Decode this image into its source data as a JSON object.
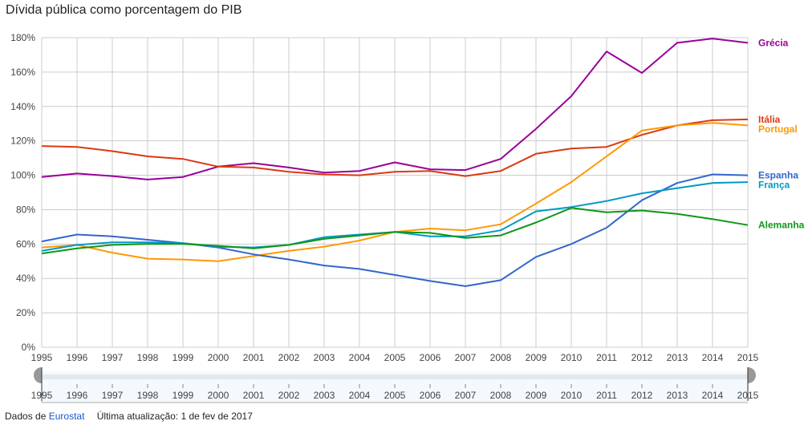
{
  "chart_data": {
    "type": "line",
    "title": "Dívida pública como porcentagem do PIB",
    "xlabel": "",
    "ylabel": "",
    "x": [
      1995,
      1996,
      1997,
      1998,
      1999,
      2000,
      2001,
      2002,
      2003,
      2004,
      2005,
      2006,
      2007,
      2008,
      2009,
      2010,
      2011,
      2012,
      2013,
      2014,
      2015
    ],
    "x_tick_labels": [
      "1995",
      "1996",
      "1997",
      "1998",
      "1999",
      "2000",
      "2001",
      "2002",
      "2003",
      "2004",
      "2005",
      "2006",
      "2007",
      "2008",
      "2009",
      "2010",
      "2011",
      "2012",
      "2013",
      "2014",
      "2015"
    ],
    "ylim": [
      0,
      180
    ],
    "y_ticks": [
      0,
      20,
      40,
      60,
      80,
      100,
      120,
      140,
      160,
      180
    ],
    "y_tick_labels": [
      "0%",
      "20%",
      "40%",
      "60%",
      "80%",
      "100%",
      "120%",
      "140%",
      "160%",
      "180%"
    ],
    "grid": true,
    "legend_placement": "right (inline labels at line ends)",
    "series": [
      {
        "name": "Grécia",
        "color": "#990099",
        "values": [
          99,
          101,
          99.5,
          97.5,
          99,
          105,
          107,
          104.5,
          101.5,
          102.5,
          107.5,
          103.5,
          103,
          109.5,
          127,
          146,
          172,
          159.5,
          177,
          179.5,
          177
        ]
      },
      {
        "name": "Itália",
        "color": "#dc3912",
        "values": [
          117,
          116.5,
          114,
          111,
          109.5,
          105,
          104.5,
          102,
          100.5,
          100,
          102,
          102.5,
          99.5,
          102.5,
          112.5,
          115.5,
          116.5,
          123.5,
          129,
          132,
          132.5
        ]
      },
      {
        "name": "Portugal",
        "color": "#ff9900",
        "values": [
          58,
          59.5,
          55,
          51.5,
          51,
          50,
          53,
          56,
          58.5,
          62,
          67,
          69,
          68,
          71.5,
          83.5,
          96,
          111,
          126,
          129,
          130.5,
          129
        ]
      },
      {
        "name": "Espanha",
        "color": "#3366cc",
        "values": [
          61.5,
          65.5,
          64.5,
          62.5,
          60.5,
          58,
          54,
          51,
          47.5,
          45.5,
          42,
          38.5,
          35.5,
          39,
          52.5,
          60,
          69.5,
          85.5,
          95.5,
          100.5,
          100
        ]
      },
      {
        "name": "França",
        "color": "#0099c6",
        "values": [
          56,
          59.5,
          61,
          61,
          60.5,
          58.5,
          58,
          59.5,
          64,
          65.5,
          67,
          64.5,
          64.5,
          68,
          79,
          81.5,
          85,
          89.5,
          92.5,
          95.5,
          96
        ]
      },
      {
        "name": "Alemanha",
        "color": "#109618",
        "values": [
          54.5,
          57.5,
          59.5,
          60,
          60,
          59,
          57.5,
          59.5,
          63,
          65,
          67,
          66.5,
          63.5,
          65,
          72.5,
          81,
          78.5,
          79.5,
          77.5,
          74.5,
          71
        ]
      }
    ],
    "range_selector": {
      "start": "1995",
      "end": "2015",
      "tick_labels": [
        "1995",
        "1996",
        "1997",
        "1998",
        "1999",
        "2000",
        "2001",
        "2002",
        "2003",
        "2004",
        "2005",
        "2006",
        "2007",
        "2008",
        "2009",
        "2010",
        "2011",
        "2012",
        "2013",
        "2014",
        "2015"
      ]
    }
  },
  "footer": {
    "source_prefix": "Dados de",
    "source_link": "Eurostat",
    "updated": "Última atualização: 1 de fev de 2017"
  },
  "colors": {
    "grid": "#cccccc",
    "axis_text": "#444444",
    "link": "#1a57c9",
    "range_bg": "#f3f9fd",
    "range_bar": "#e3e8ec",
    "handle": "#999999"
  }
}
